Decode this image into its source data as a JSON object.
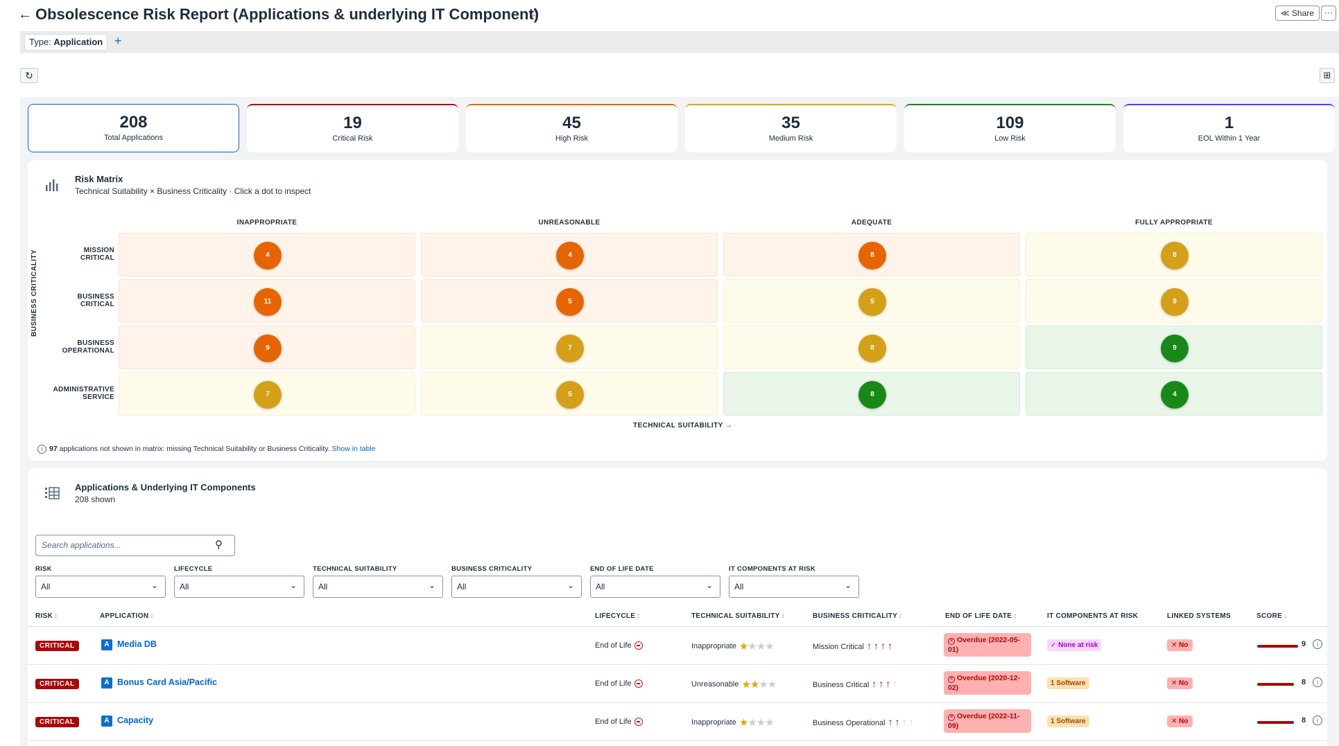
{
  "header": {
    "back_icon": "←",
    "title": "Obsolescence Risk Report (Applications & underlying IT Component)",
    "star_icon": "☆",
    "share_label": "Share",
    "more_label": "···"
  },
  "filterbar": {
    "chip_key": "Type:",
    "chip_value": "Application",
    "add_label": "+"
  },
  "toolbar": {
    "refresh_icon": "↻",
    "layout_icon": "⊞"
  },
  "kpis": [
    {
      "value": "208",
      "label": "Total Applications",
      "color": "#0064d9"
    },
    {
      "value": "19",
      "label": "Critical Risk",
      "color": "#aa0808"
    },
    {
      "value": "45",
      "label": "High Risk",
      "color": "#e76500"
    },
    {
      "value": "35",
      "label": "Medium Risk",
      "color": "#e9a300"
    },
    {
      "value": "109",
      "label": "Low Risk",
      "color": "#188918"
    },
    {
      "value": "1",
      "label": "EOL Within 1 Year",
      "color": "#5d36ff"
    }
  ],
  "matrix": {
    "title": "Risk Matrix",
    "subtitle": "Technical Suitability × Business Criticality · Click a dot to inspect",
    "columns": [
      "INAPPROPRIATE",
      "UNREASONABLE",
      "ADEQUATE",
      "FULLY APPROPRIATE"
    ],
    "rows": [
      {
        "label_1": "MISSION",
        "label_2": "CRITICAL"
      },
      {
        "label_1": "BUSINESS",
        "label_2": "CRITICAL"
      },
      {
        "label_1": "BUSINESS",
        "label_2": "OPERATIONAL"
      },
      {
        "label_1": "ADMINISTRATIVE",
        "label_2": "SERVICE"
      }
    ],
    "y_axis": "BUSINESS CRITICALITY",
    "x_axis": "TECHNICAL SUITABILITY →",
    "cells": [
      [
        {
          "count": "4",
          "level": "high"
        },
        {
          "count": "4",
          "level": "high"
        },
        {
          "count": "8",
          "level": "high"
        },
        {
          "count": "8",
          "level": "medium"
        }
      ],
      [
        {
          "count": "11",
          "level": "high"
        },
        {
          "count": "5",
          "level": "high"
        },
        {
          "count": "5",
          "level": "medium"
        },
        {
          "count": "9",
          "level": "medium"
        }
      ],
      [
        {
          "count": "9",
          "level": "high"
        },
        {
          "count": "7",
          "level": "medium"
        },
        {
          "count": "8",
          "level": "medium"
        },
        {
          "count": "9",
          "level": "low"
        }
      ],
      [
        {
          "count": "7",
          "level": "medium"
        },
        {
          "count": "5",
          "level": "medium"
        },
        {
          "count": "8",
          "level": "low"
        },
        {
          "count": "4",
          "level": "low"
        }
      ]
    ],
    "colors": {
      "high": {
        "dot": "#e76500",
        "bg": "#fff3ea"
      },
      "medium": {
        "dot": "#d4a017",
        "bg": "#fffbeb"
      },
      "low": {
        "dot": "#188918",
        "bg": "#e8f5e8"
      }
    },
    "note_count": "97",
    "note_text": " applications not shown in matrix: missing Technical Suitability or Business Criticality. ",
    "note_link": "Show in table"
  },
  "table": {
    "title": "Applications & Underlying IT Components",
    "subtitle": "208 shown",
    "search_placeholder": "Search applications...",
    "filters": [
      {
        "label": "RISK",
        "value": "All"
      },
      {
        "label": "LIFECYCLE",
        "value": "All"
      },
      {
        "label": "TECHNICAL SUITABILITY",
        "value": "All"
      },
      {
        "label": "BUSINESS CRITICALITY",
        "value": "All"
      },
      {
        "label": "END OF LIFE DATE",
        "value": "All"
      },
      {
        "label": "IT COMPONENTS AT RISK",
        "value": "All"
      }
    ],
    "columns": [
      {
        "label": "RISK",
        "sort": "↕"
      },
      {
        "label": "APPLICATION",
        "sort": "↕"
      },
      {
        "label": "LIFECYCLE",
        "sort": "↕"
      },
      {
        "label": "TECHNICAL SUITABILITY",
        "sort": "↕"
      },
      {
        "label": "BUSINESS CRITICALITY",
        "sort": "↕"
      },
      {
        "label": "END OF LIFE DATE",
        "sort": "↕"
      },
      {
        "label": "IT COMPONENTS AT RISK",
        "sort": ""
      },
      {
        "label": "LINKED SYSTEMS",
        "sort": ""
      },
      {
        "label": "SCORE",
        "sort": "↓"
      }
    ],
    "rows": [
      {
        "risk": "CRITICAL",
        "type": "A",
        "name": "Media DB",
        "lifecycle": "End of Life",
        "suitability": "Inappropriate",
        "stars": 1,
        "criticality": "Mission Critical",
        "arrows": 4,
        "eol": "Overdue (2022-05-01)",
        "itc": "None at risk",
        "itc_kind": "none",
        "linked": "No",
        "score": "9",
        "score_frac": 0.9
      },
      {
        "risk": "CRITICAL",
        "type": "A",
        "name": "Bonus Card Asia/Pacific",
        "lifecycle": "End of Life",
        "suitability": "Unreasonable",
        "stars": 2,
        "criticality": "Business Critical",
        "arrows": 3,
        "eol": "Overdue (2020-12-02)",
        "itc": "1 Software",
        "itc_kind": "sw",
        "linked": "No",
        "score": "8",
        "score_frac": 0.8
      },
      {
        "risk": "CRITICAL",
        "type": "A",
        "name": "Capacity",
        "lifecycle": "End of Life",
        "suitability": "Inappropriate",
        "stars": 1,
        "criticality": "Business Operational",
        "arrows": 2,
        "eol": "Overdue (2022-11-09)",
        "itc": "1 Software",
        "itc_kind": "sw",
        "linked": "No",
        "score": "8",
        "score_frac": 0.8
      }
    ]
  }
}
